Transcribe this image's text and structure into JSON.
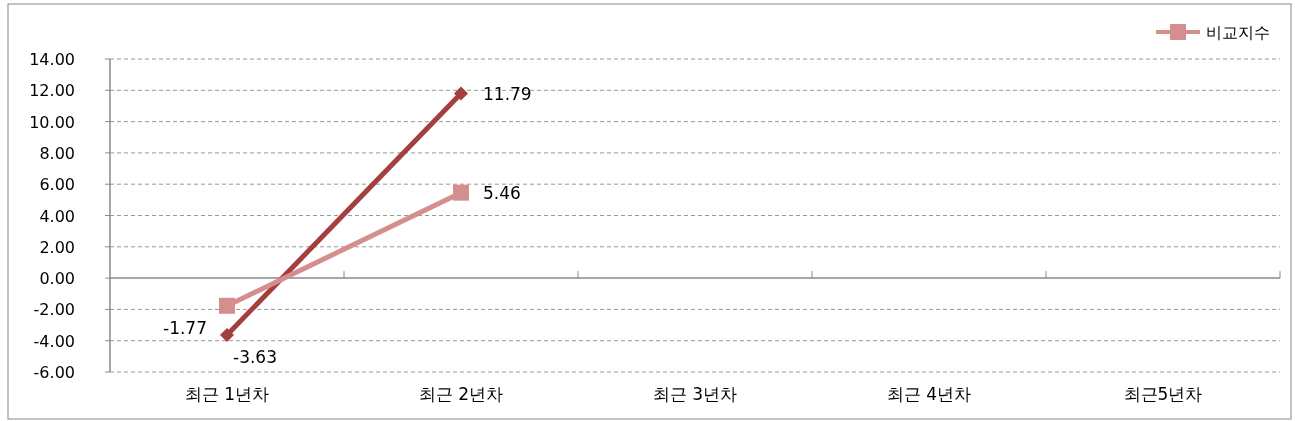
{
  "chart_data": {
    "type": "line",
    "categories": [
      "최근 1년차",
      "최근 2년차",
      "최근 3년차",
      "최근 4년차",
      "최근5년차"
    ],
    "series": [
      {
        "color": "#a33f3d",
        "marker": "diamond",
        "values": [
          -3.63,
          11.79,
          null,
          null,
          null
        ]
      },
      {
        "name": "비교지수",
        "color": "#d48e8e",
        "marker": "square",
        "values": [
          -1.77,
          5.46,
          null,
          null,
          null
        ]
      }
    ],
    "ylim": [
      -6,
      14
    ],
    "yticks": [
      {
        "value": -6,
        "label": "-6.00"
      },
      {
        "value": -4,
        "label": "-4.00"
      },
      {
        "value": -2,
        "label": "-2.00"
      },
      {
        "value": 0,
        "label": "0.00"
      },
      {
        "value": 2,
        "label": "2.00"
      },
      {
        "value": 4,
        "label": "4.00"
      },
      {
        "value": 6,
        "label": "6.00"
      },
      {
        "value": 8,
        "label": "8.00"
      },
      {
        "value": 10,
        "label": "10.00"
      },
      {
        "value": 12,
        "label": "12.00"
      },
      {
        "value": 14,
        "label": "14.00"
      }
    ],
    "grid": "y",
    "legend": "top right",
    "data_labels": true,
    "line_style": "solid"
  }
}
